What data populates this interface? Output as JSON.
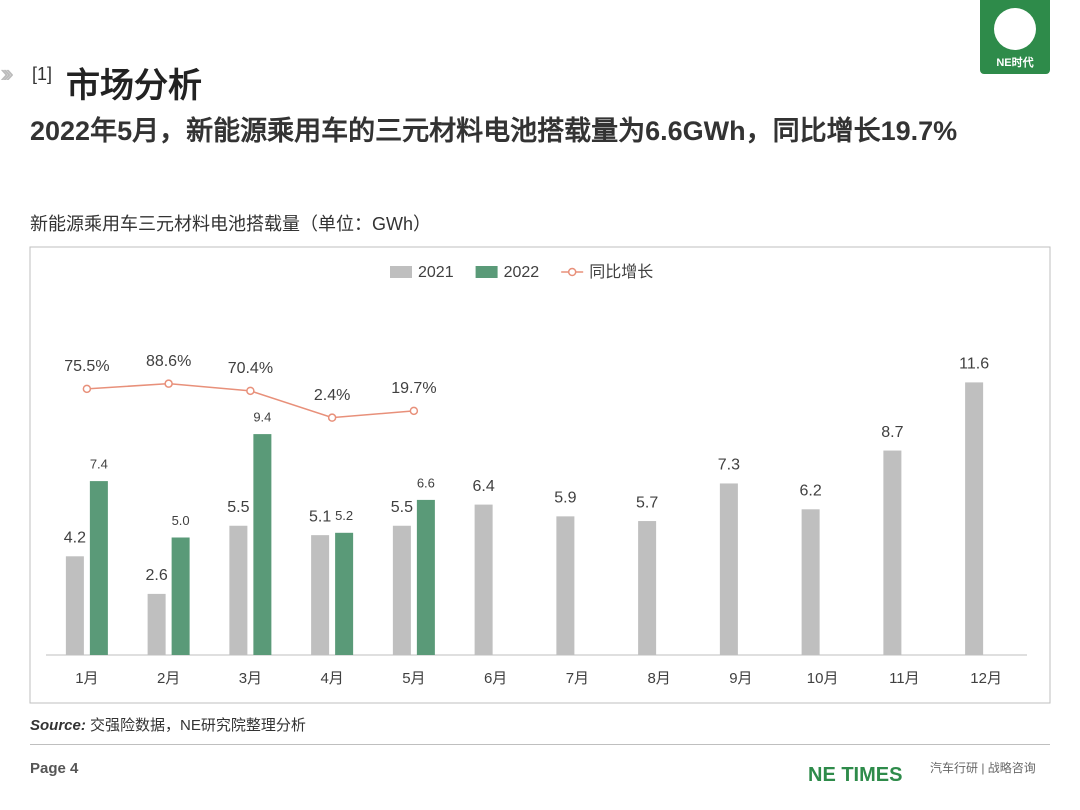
{
  "section_number": "[1]",
  "section_title": "市场分析",
  "headline": "2022年5月，新能源乘用车的三元材料电池搭载量为6.6GWh，同比增长19.7%",
  "logo_text": "NE时代",
  "chart_data": {
    "type": "bar",
    "title": "新能源乘用车三元材料电池搭载量（单位：GWh）",
    "categories": [
      "1月",
      "2月",
      "3月",
      "4月",
      "5月",
      "6月",
      "7月",
      "8月",
      "9月",
      "10月",
      "11月",
      "12月"
    ],
    "ylim": [
      0,
      14
    ],
    "y2lim": [
      -600,
      235
    ],
    "legend": "top",
    "series": [
      {
        "name": "2021",
        "color": "#bfbfbf",
        "type": "bar",
        "values": [
          4.2,
          2.6,
          5.5,
          5.1,
          5.5,
          6.4,
          5.9,
          5.7,
          7.3,
          6.2,
          8.7,
          11.6
        ]
      },
      {
        "name": "2022",
        "color": "#5a9a78",
        "type": "bar",
        "values": [
          7.4,
          5.0,
          9.4,
          5.2,
          6.6,
          null,
          null,
          null,
          null,
          null,
          null,
          null
        ],
        "value_labels": [
          "7.4",
          "5.0",
          "9.4",
          "5.2",
          "6.6",
          null,
          null,
          null,
          null,
          null,
          null,
          null
        ]
      },
      {
        "name": "同比增长",
        "color": "#e8907a",
        "type": "line",
        "axis": "y2",
        "values": [
          75.5,
          88.6,
          70.4,
          2.4,
          19.7,
          null,
          null,
          null,
          null,
          null,
          null,
          null
        ],
        "value_labels": [
          "75.5%",
          "88.6%",
          "70.4%",
          "2.4%",
          "19.7%",
          null,
          null,
          null,
          null,
          null,
          null,
          null
        ]
      }
    ]
  },
  "source_label": "Source:",
  "source_text": "交强险数据，NE研究院整理分析",
  "page": "Page 4",
  "brand": "NE TIMES",
  "tagline": "汽车行研 | 战略咨询"
}
